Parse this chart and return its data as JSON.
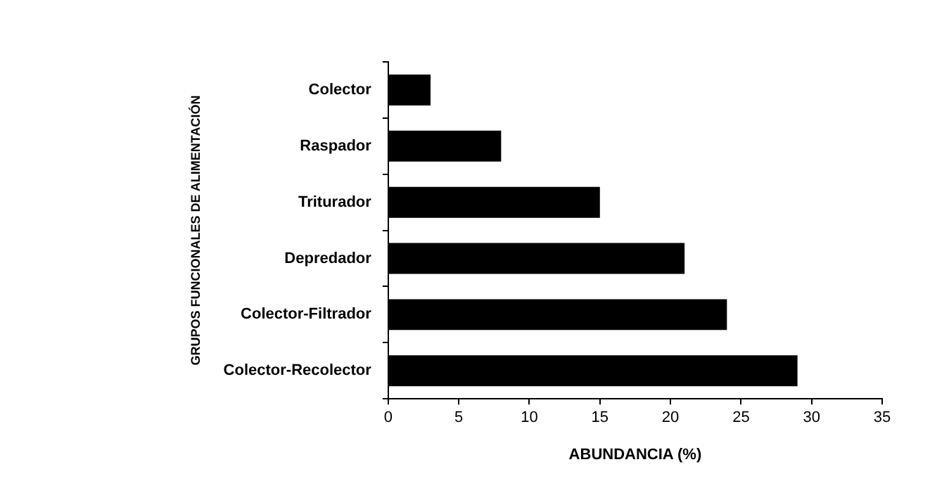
{
  "chart_data": {
    "type": "bar",
    "orientation": "horizontal",
    "xlabel": "ABUNDANCIA (%)",
    "ylabel": "GRUPOS FUNCIONALES DE ALIMENTACIÓN",
    "categories": [
      "Colector",
      "Raspador",
      "Triturador",
      "Depredador",
      "Colector-Filtrador",
      "Colector-Recolector"
    ],
    "values": [
      3,
      8,
      15,
      21,
      24,
      29
    ],
    "color": "#000000",
    "xlim": [
      0,
      35
    ],
    "xticks": [
      0,
      5,
      10,
      15,
      20,
      25,
      30,
      35
    ],
    "grid": false,
    "legend": false
  }
}
